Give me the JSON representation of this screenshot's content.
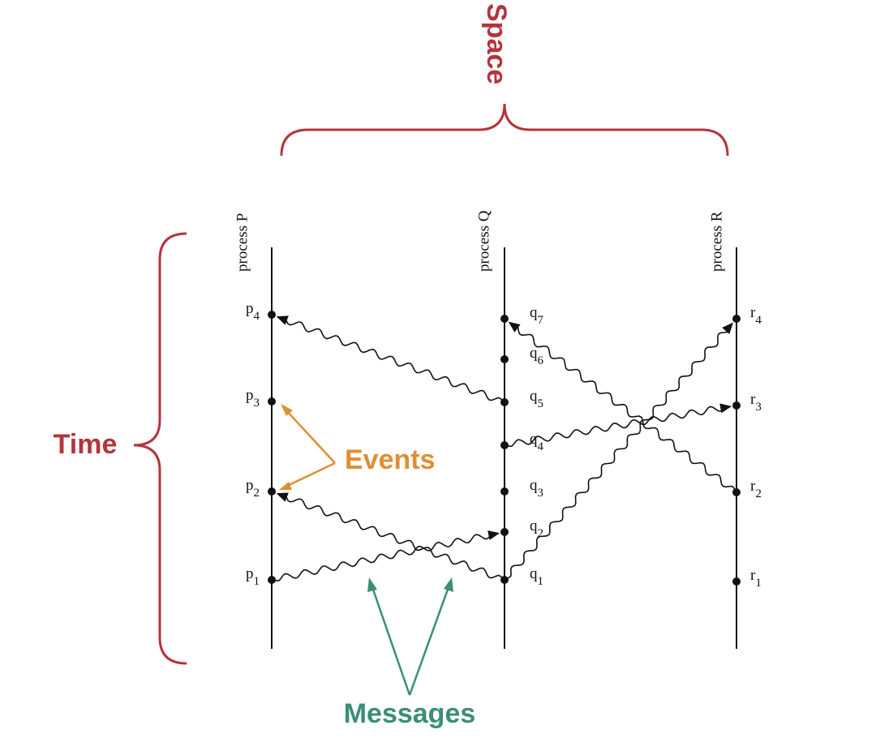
{
  "space_label": "Space",
  "time_label": "Time",
  "events_label": "Events",
  "messages_label": "Messages",
  "processes": [
    {
      "label": "process P",
      "events": [
        {
          "letter": "p",
          "sub": "1"
        },
        {
          "letter": "p",
          "sub": "2"
        },
        {
          "letter": "p",
          "sub": "3"
        },
        {
          "letter": "p",
          "sub": "4"
        }
      ]
    },
    {
      "label": "process Q",
      "events": [
        {
          "letter": "q",
          "sub": "1"
        },
        {
          "letter": "q",
          "sub": "2"
        },
        {
          "letter": "q",
          "sub": "3"
        },
        {
          "letter": "q",
          "sub": "4"
        },
        {
          "letter": "q",
          "sub": "5"
        },
        {
          "letter": "q",
          "sub": "6"
        },
        {
          "letter": "q",
          "sub": "7"
        }
      ]
    },
    {
      "label": "process R",
      "events": [
        {
          "letter": "r",
          "sub": "1"
        },
        {
          "letter": "r",
          "sub": "2"
        },
        {
          "letter": "r",
          "sub": "3"
        },
        {
          "letter": "r",
          "sub": "4"
        }
      ]
    }
  ]
}
